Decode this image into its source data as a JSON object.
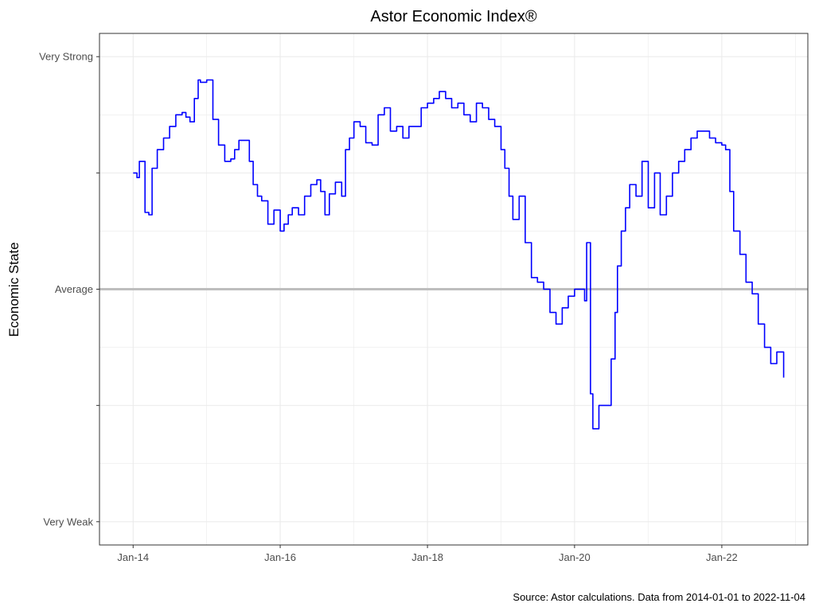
{
  "chart_data": {
    "type": "line",
    "title": "Astor Economic Index®",
    "ylabel": "Economic State",
    "xlabel": "",
    "caption": "Source: Astor calculations. Data from 2014-01-01 to 2022-11-04",
    "x_ticks": [
      "Jan-14",
      "Jan-16",
      "Jan-18",
      "Jan-20",
      "Jan-22"
    ],
    "x_tick_dates": [
      "2014-01-01",
      "2016-01-01",
      "2018-01-01",
      "2020-01-01",
      "2022-01-01"
    ],
    "y_ticks": [
      {
        "value": 100,
        "label": "Very Strong"
      },
      {
        "value": 50,
        "label": ""
      },
      {
        "value": 0,
        "label": "Average"
      },
      {
        "value": -50,
        "label": ""
      },
      {
        "value": -100,
        "label": "Very Weak"
      }
    ],
    "xlim": [
      "2013-07-18",
      "2023-03-04"
    ],
    "ylim": [
      -110,
      110
    ],
    "grid": true,
    "reference_line": {
      "y": 0,
      "color": "#bebebe"
    },
    "colors": {
      "line": "#0000ff",
      "grid": "#ebebeb",
      "border": "#333333"
    },
    "series": [
      {
        "x": [
          "2014-01-01",
          "2014-01-20",
          "2014-02-01",
          "2014-03-01",
          "2014-03-20",
          "2014-04-05",
          "2014-05-01",
          "2014-06-01",
          "2014-07-01",
          "2014-08-01",
          "2014-09-01",
          "2014-09-20",
          "2014-10-10",
          "2014-11-01",
          "2014-11-20",
          "2014-12-01",
          "2015-01-01",
          "2015-02-01",
          "2015-03-01",
          "2015-04-01",
          "2015-05-01",
          "2015-05-20",
          "2015-06-10",
          "2015-07-01",
          "2015-08-01",
          "2015-08-20",
          "2015-09-10",
          "2015-10-01",
          "2015-11-01",
          "2015-12-01",
          "2016-01-01",
          "2016-01-20",
          "2016-02-10",
          "2016-03-01",
          "2016-04-01",
          "2016-05-01",
          "2016-06-01",
          "2016-07-01",
          "2016-07-20",
          "2016-08-10",
          "2016-09-01",
          "2016-10-01",
          "2016-11-01",
          "2016-11-20",
          "2016-12-10",
          "2017-01-01",
          "2017-02-01",
          "2017-03-01",
          "2017-04-01",
          "2017-05-01",
          "2017-06-01",
          "2017-07-01",
          "2017-08-01",
          "2017-09-01",
          "2017-10-01",
          "2017-11-01",
          "2017-12-01",
          "2018-01-01",
          "2018-02-01",
          "2018-03-01",
          "2018-04-01",
          "2018-05-01",
          "2018-06-01",
          "2018-07-01",
          "2018-08-01",
          "2018-09-01",
          "2018-10-01",
          "2018-11-01",
          "2018-12-01",
          "2019-01-01",
          "2019-01-20",
          "2019-02-10",
          "2019-03-01",
          "2019-04-01",
          "2019-05-01",
          "2019-06-01",
          "2019-07-01",
          "2019-08-01",
          "2019-09-01",
          "2019-10-01",
          "2019-11-01",
          "2019-12-01",
          "2020-01-01",
          "2020-01-20",
          "2020-02-01",
          "2020-02-20",
          "2020-03-01",
          "2020-03-20",
          "2020-04-01",
          "2020-05-01",
          "2020-06-01",
          "2020-07-01",
          "2020-07-20",
          "2020-08-01",
          "2020-08-20",
          "2020-09-10",
          "2020-10-01",
          "2020-11-01",
          "2020-12-01",
          "2021-01-01",
          "2021-02-01",
          "2021-03-01",
          "2021-04-01",
          "2021-05-01",
          "2021-06-01",
          "2021-07-01",
          "2021-08-01",
          "2021-09-01",
          "2021-10-01",
          "2021-11-01",
          "2021-12-01",
          "2022-01-01",
          "2022-01-20",
          "2022-02-10",
          "2022-03-01",
          "2022-04-01",
          "2022-05-01",
          "2022-06-01",
          "2022-07-01",
          "2022-08-01",
          "2022-09-01",
          "2022-10-01",
          "2022-11-04"
        ],
        "y": [
          50,
          48,
          55,
          33,
          32,
          52,
          60,
          65,
          70,
          75,
          76,
          74,
          72,
          82,
          90,
          89,
          90,
          73,
          62,
          55,
          56,
          60,
          64,
          64,
          55,
          45,
          40,
          38,
          28,
          34,
          25,
          28,
          32,
          35,
          32,
          40,
          45,
          47,
          42,
          32,
          41,
          46,
          40,
          60,
          65,
          72,
          70,
          63,
          62,
          75,
          78,
          68,
          70,
          65,
          70,
          70,
          78,
          80,
          82,
          85,
          82,
          78,
          80,
          75,
          72,
          80,
          78,
          73,
          70,
          60,
          52,
          40,
          30,
          40,
          20,
          5,
          3,
          0,
          -10,
          -15,
          -8,
          -3,
          0,
          0,
          0,
          -5,
          20,
          -45,
          -60,
          -50,
          -50,
          -30,
          -10,
          10,
          25,
          35,
          45,
          40,
          55,
          35,
          50,
          32,
          40,
          50,
          55,
          60,
          65,
          68,
          68,
          65,
          63,
          62,
          60,
          42,
          25,
          15,
          3,
          -2,
          -15,
          -25,
          -32,
          -27,
          -38
        ]
      }
    ]
  }
}
